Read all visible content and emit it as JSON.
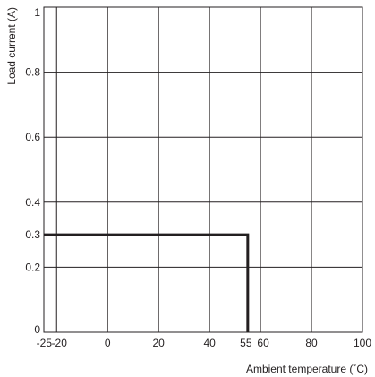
{
  "chart_data": {
    "type": "line",
    "xlabel": "Ambient temperature (˚C)",
    "ylabel": "Load current (A)",
    "xlim": [
      -25,
      100
    ],
    "ylim": [
      0,
      1
    ],
    "x_ticks": [
      -25,
      -20,
      0,
      20,
      40,
      55,
      60,
      80,
      100
    ],
    "x_tick_labels": [
      "-25",
      "-20",
      "0",
      "20",
      "40",
      "55",
      "60",
      "80",
      "100"
    ],
    "x_grid": [
      -20,
      0,
      20,
      40,
      60,
      80
    ],
    "y_ticks": [
      0,
      0.2,
      0.3,
      0.4,
      0.6,
      0.8,
      1
    ],
    "y_tick_labels": [
      "0",
      "0.2",
      "0.3",
      "0.4",
      "0.6",
      "0.8",
      "1"
    ],
    "y_grid": [
      0.2,
      0.4,
      0.6,
      0.8
    ],
    "grid": true,
    "series": [
      {
        "x": [
          -25,
          55,
          55
        ],
        "y": [
          0.3,
          0.3,
          0
        ]
      }
    ]
  }
}
